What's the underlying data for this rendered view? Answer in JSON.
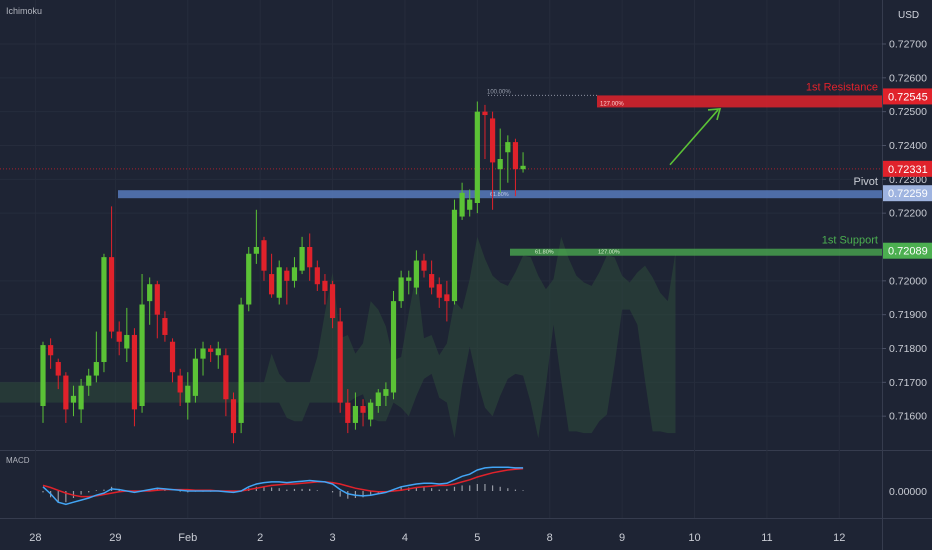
{
  "chart_data": {
    "type": "candlestick",
    "indicator_label": "Ichimoku",
    "currency": "USD",
    "yaxis": {
      "ylim": [
        0.715,
        0.7283
      ],
      "ticks": [
        "0.71600",
        "0.71700",
        "0.71800",
        "0.71900",
        "0.72000",
        "0.72200",
        "0.72300",
        "0.72400",
        "0.72500",
        "0.72600",
        "0.72700"
      ],
      "tick_values": [
        0.716,
        0.717,
        0.718,
        0.719,
        0.72,
        0.722,
        0.723,
        0.724,
        0.725,
        0.726,
        0.727
      ]
    },
    "xaxis": {
      "labels": [
        "28",
        "29",
        "Feb",
        "2",
        "3",
        "4",
        "5",
        "8",
        "9",
        "10",
        "11",
        "12"
      ],
      "label_index": [
        -1,
        9.5,
        19,
        28.5,
        38,
        47.5,
        57,
        66.5,
        76,
        85.5,
        95,
        104.5
      ]
    },
    "candles": [
      [
        0.7163,
        0.7181,
        0.7182,
        0.7158
      ],
      [
        0.7181,
        0.7178,
        0.7183,
        0.7174
      ],
      [
        0.7176,
        0.7172,
        0.7177,
        0.7168
      ],
      [
        0.7172,
        0.7162,
        0.7173,
        0.7158
      ],
      [
        0.7164,
        0.7166,
        0.7169,
        0.716
      ],
      [
        0.7162,
        0.7169,
        0.7171,
        0.7158
      ],
      [
        0.7169,
        0.7172,
        0.7174,
        0.7166
      ],
      [
        0.7172,
        0.7176,
        0.7185,
        0.717
      ],
      [
        0.7176,
        0.7207,
        0.7208,
        0.7173
      ],
      [
        0.7207,
        0.7185,
        0.7222,
        0.7183
      ],
      [
        0.7185,
        0.7182,
        0.7188,
        0.7178
      ],
      [
        0.718,
        0.7184,
        0.7192,
        0.7176
      ],
      [
        0.7184,
        0.7162,
        0.7186,
        0.7157
      ],
      [
        0.7163,
        0.7193,
        0.7202,
        0.7161
      ],
      [
        0.7194,
        0.7199,
        0.7201,
        0.7187
      ],
      [
        0.7199,
        0.719,
        0.72,
        0.7183
      ],
      [
        0.7189,
        0.7184,
        0.7191,
        0.7182
      ],
      [
        0.7182,
        0.7173,
        0.7183,
        0.717
      ],
      [
        0.7172,
        0.7167,
        0.7174,
        0.7163
      ],
      [
        0.7164,
        0.7169,
        0.7173,
        0.7159
      ],
      [
        0.7166,
        0.7177,
        0.718,
        0.7164
      ],
      [
        0.7177,
        0.718,
        0.7182,
        0.7172
      ],
      [
        0.718,
        0.7179,
        0.7181,
        0.7176
      ],
      [
        0.7178,
        0.718,
        0.7182,
        0.7174
      ],
      [
        0.7178,
        0.7165,
        0.718,
        0.716
      ],
      [
        0.7165,
        0.7155,
        0.7167,
        0.7152
      ],
      [
        0.7158,
        0.7193,
        0.7195,
        0.7155
      ],
      [
        0.7193,
        0.7208,
        0.721,
        0.7191
      ],
      [
        0.7208,
        0.721,
        0.7221,
        0.7205
      ],
      [
        0.7212,
        0.7203,
        0.7213,
        0.72
      ],
      [
        0.7202,
        0.7196,
        0.7208,
        0.7195
      ],
      [
        0.7195,
        0.7204,
        0.7206,
        0.7193
      ],
      [
        0.7203,
        0.72,
        0.7204,
        0.7193
      ],
      [
        0.72,
        0.7204,
        0.7207,
        0.7198
      ],
      [
        0.7203,
        0.721,
        0.7213,
        0.7202
      ],
      [
        0.721,
        0.7204,
        0.7214,
        0.72
      ],
      [
        0.7204,
        0.7199,
        0.7206,
        0.7197
      ],
      [
        0.72,
        0.7197,
        0.7202,
        0.7193
      ],
      [
        0.7199,
        0.7189,
        0.72,
        0.7186
      ],
      [
        0.7188,
        0.7164,
        0.7192,
        0.7161
      ],
      [
        0.7164,
        0.7158,
        0.7168,
        0.7155
      ],
      [
        0.7158,
        0.7163,
        0.7167,
        0.7156
      ],
      [
        0.7163,
        0.7161,
        0.7165,
        0.7157
      ],
      [
        0.7159,
        0.7164,
        0.7165,
        0.7157
      ],
      [
        0.7163,
        0.7167,
        0.7168,
        0.7161
      ],
      [
        0.7166,
        0.7168,
        0.717,
        0.7163
      ],
      [
        0.7167,
        0.7194,
        0.7197,
        0.7165
      ],
      [
        0.7194,
        0.7201,
        0.7203,
        0.7192
      ],
      [
        0.72,
        0.7201,
        0.7203,
        0.7196
      ],
      [
        0.7198,
        0.7206,
        0.7209,
        0.7196
      ],
      [
        0.7206,
        0.7203,
        0.7208,
        0.7201
      ],
      [
        0.7202,
        0.7198,
        0.7206,
        0.7196
      ],
      [
        0.7199,
        0.7195,
        0.7201,
        0.7192
      ],
      [
        0.7196,
        0.7194,
        0.72,
        0.7188
      ],
      [
        0.7194,
        0.7221,
        0.7224,
        0.7193
      ],
      [
        0.7219,
        0.7226,
        0.7229,
        0.7218
      ],
      [
        0.7221,
        0.7224,
        0.7227,
        0.7219
      ],
      [
        0.7223,
        0.725,
        0.7253,
        0.722
      ],
      [
        0.725,
        0.7249,
        0.7252,
        0.7236
      ],
      [
        0.7248,
        0.7235,
        0.725,
        0.7221
      ],
      [
        0.7233,
        0.7236,
        0.7245,
        0.7226
      ],
      [
        0.7238,
        0.7241,
        0.7243,
        0.7229
      ],
      [
        0.7241,
        0.7233,
        0.7242,
        0.7225
      ],
      [
        0.7233,
        0.7234,
        0.7238,
        0.7232
      ]
    ],
    "levels": [
      {
        "name": "1st Resistance",
        "value": 0.72545,
        "label": "0.72545",
        "color": "#e0222b"
      },
      {
        "name": "Pivot",
        "value": 0.72259,
        "label": "0.72259",
        "color": "#5a7fc4"
      },
      {
        "name": "1st Support",
        "value": 0.72089,
        "label": "0.72089",
        "color": "#4caf50"
      }
    ],
    "current_price": {
      "value": 0.72331,
      "label": "0.72331",
      "color": "#e0222b"
    },
    "fib_labels": [
      "100.00%",
      "127.00%",
      "61.80%",
      "61.80%",
      "127.00%"
    ],
    "macd": {
      "label": "MACD",
      "zero_label": "0.00000",
      "macd_line": [
        0.6,
        -0.4,
        -1.6,
        -1.9,
        -1.6,
        -1.3,
        -1.0,
        -0.6,
        -0.3,
        0.3,
        0.2,
        0.0,
        -0.2,
        0.0,
        0.2,
        0.4,
        0.3,
        0.2,
        0.1,
        0.0,
        0.0,
        0.0,
        0.0,
        0.0,
        -0.1,
        -0.2,
        0.0,
        0.6,
        1.0,
        1.2,
        1.3,
        1.3,
        1.2,
        1.3,
        1.4,
        1.5,
        1.4,
        1.3,
        1.0,
        0.2,
        -0.4,
        -0.6,
        -0.7,
        -0.6,
        -0.4,
        -0.2,
        0.2,
        0.6,
        0.8,
        1.0,
        1.1,
        1.1,
        1.0,
        1.1,
        1.6,
        2.1,
        2.4,
        3.0,
        3.3,
        3.4,
        3.4,
        3.4,
        3.3,
        3.3
      ],
      "signal_line": [
        0.8,
        0.5,
        0.1,
        -0.3,
        -0.6,
        -0.8,
        -0.8,
        -0.7,
        -0.5,
        -0.3,
        -0.1,
        0.0,
        0.0,
        0.0,
        0.0,
        0.1,
        0.2,
        0.2,
        0.2,
        0.2,
        0.1,
        0.1,
        0.1,
        0.0,
        0.0,
        0.0,
        0.0,
        0.2,
        0.4,
        0.6,
        0.8,
        0.9,
        1.0,
        1.0,
        1.1,
        1.2,
        1.3,
        1.3,
        1.2,
        1.0,
        0.7,
        0.4,
        0.2,
        0.0,
        -0.1,
        -0.1,
        0.0,
        0.1,
        0.3,
        0.5,
        0.6,
        0.7,
        0.8,
        0.8,
        1.0,
        1.3,
        1.6,
        2.0,
        2.3,
        2.6,
        2.8,
        3.0,
        3.1,
        3.2
      ]
    }
  }
}
